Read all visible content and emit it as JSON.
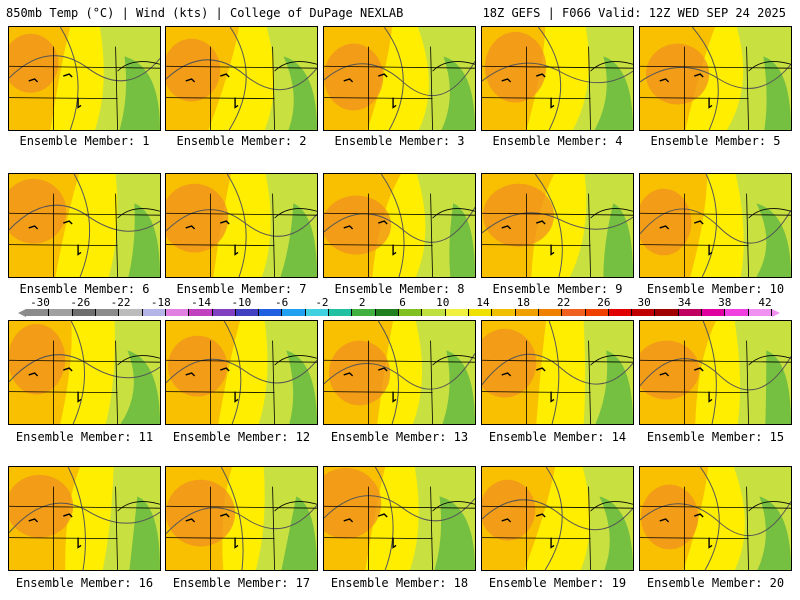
{
  "header": {
    "left": "850mb Temp (°C) | Wind (kts) | College of DuPage NEXLAB",
    "right": "18Z GEFS | F066 Valid: 12Z WED SEP 24 2025"
  },
  "colorbar": {
    "ticks": [
      "-30",
      "-26",
      "-22",
      "-18",
      "-14",
      "-10",
      "-6",
      "-2",
      "2",
      "6",
      "10",
      "14",
      "18",
      "22",
      "26",
      "30",
      "34",
      "38",
      "42"
    ],
    "colors": [
      "#8c8c8c",
      "#a0a0a0",
      "#6e6e6e",
      "#8c8c8c",
      "#bcbcbc",
      "#b4b4e6",
      "#e080e0",
      "#c040c0",
      "#8040c0",
      "#4040c0",
      "#2060e0",
      "#20a0f0",
      "#40d0e0",
      "#20c0a0",
      "#40b040",
      "#208020",
      "#80c020",
      "#c0e040",
      "#f0f040",
      "#f0e000",
      "#f0c000",
      "#f0a000",
      "#f08000",
      "#f06020",
      "#f04000",
      "#e00000",
      "#c00000",
      "#a00000",
      "#c00060",
      "#e000a0",
      "#f040e0",
      "#f090f0"
    ]
  },
  "captions": [
    "Ensemble Member: 1",
    "Ensemble Member: 2",
    "Ensemble Member: 3",
    "Ensemble Member: 4",
    "Ensemble Member: 5",
    "Ensemble Member: 6",
    "Ensemble Member: 7",
    "Ensemble Member: 8",
    "Ensemble Member: 9",
    "Ensemble Member: 10",
    "Ensemble Member: 11",
    "Ensemble Member: 12",
    "Ensemble Member: 13",
    "Ensemble Member: 14",
    "Ensemble Member: 15",
    "Ensemble Member: 16",
    "Ensemble Member: 17",
    "Ensemble Member: 18",
    "Ensemble Member: 19",
    "Ensemble Member: 20"
  ],
  "field_colors": {
    "base": "#ffee00",
    "warm": "#f8c000",
    "hot": "#f09020",
    "cool": "#c8e040",
    "cold": "#60b840"
  }
}
